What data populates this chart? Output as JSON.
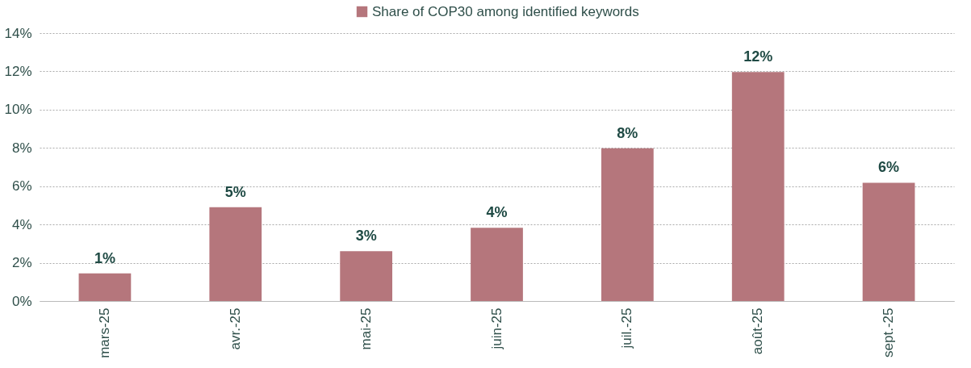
{
  "chart_data": {
    "type": "bar",
    "categories": [
      "mars-25",
      "avr.-25",
      "mai-25",
      "juin-25",
      "juil.-25",
      "août-25",
      "sept.-25"
    ],
    "series": [
      {
        "name": "Share of COP30 among identified keywords",
        "color": "#b5767c",
        "values": [
          1.44,
          4.9,
          2.6,
          3.83,
          7.98,
          11.97,
          6.18
        ]
      }
    ],
    "value_labels": [
      "1%",
      "5%",
      "3%",
      "4%",
      "8%",
      "12%",
      "6%"
    ],
    "ylim": [
      0,
      14
    ],
    "yticks": [
      {
        "value": 0,
        "label": "0%"
      },
      {
        "value": 2,
        "label": "2%"
      },
      {
        "value": 4,
        "label": "4%"
      },
      {
        "value": 6,
        "label": "6%"
      },
      {
        "value": 8,
        "label": "8%"
      },
      {
        "value": 10,
        "label": "10%"
      },
      {
        "value": 12,
        "label": "12%"
      },
      {
        "value": 14,
        "label": "14%"
      }
    ],
    "grid": "y",
    "legend": "top"
  }
}
